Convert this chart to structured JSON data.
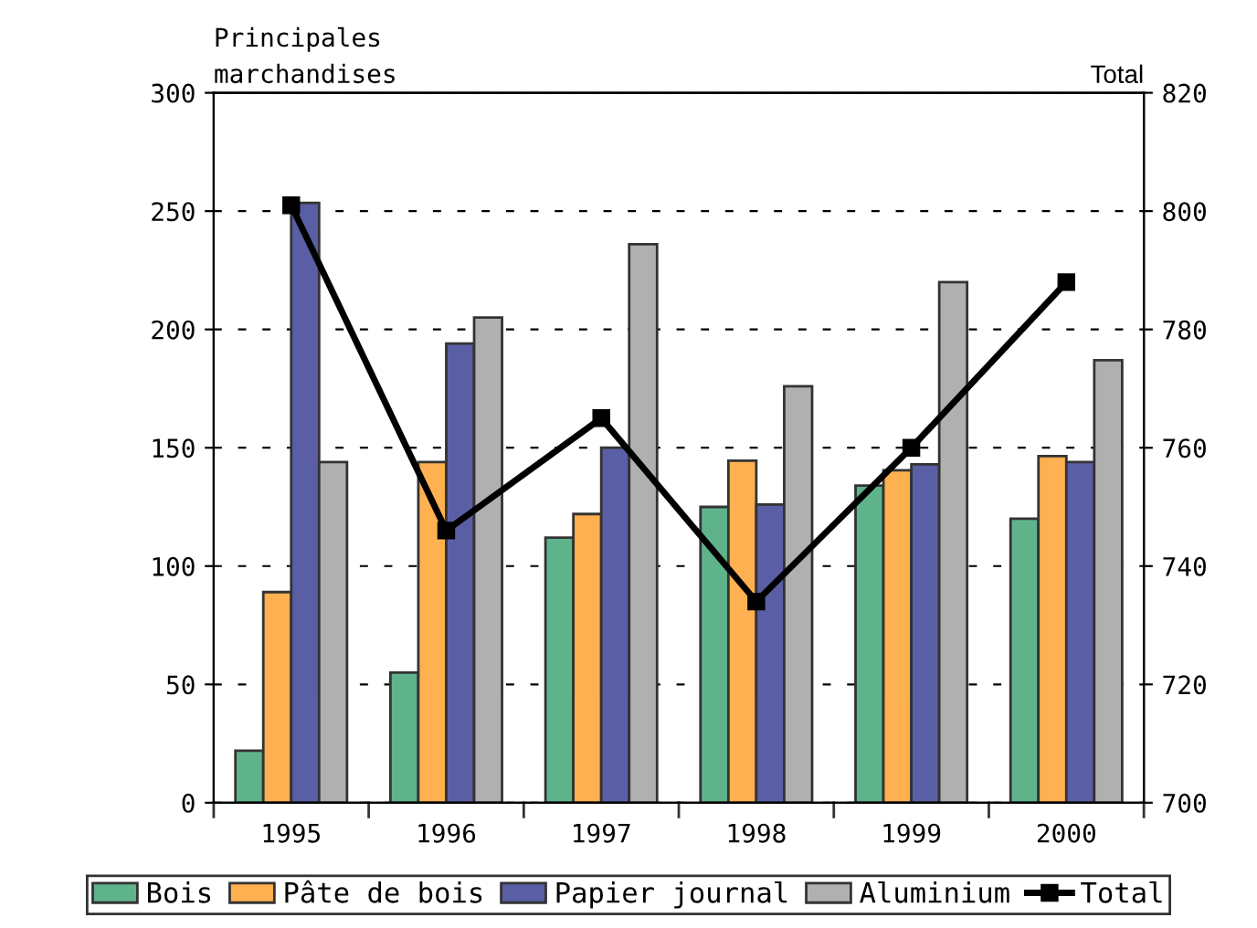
{
  "chart_data": {
    "type": "bar",
    "ylabel": "Principales\nmarchandises",
    "y2label": "Total",
    "categories": [
      "1995",
      "1996",
      "1997",
      "1998",
      "1999",
      "2000"
    ],
    "series": [
      {
        "name": "Bois",
        "color": "#5fb38a",
        "values": [
          22,
          55,
          112,
          125,
          134,
          120
        ]
      },
      {
        "name": "Pâte de bois",
        "color": "#ffb050",
        "values": [
          89,
          144,
          122,
          144.5,
          140.5,
          146.5
        ]
      },
      {
        "name": "Papier journal",
        "color": "#5a5fa5",
        "values": [
          253.5,
          194,
          150,
          126,
          143,
          144
        ]
      },
      {
        "name": "Aluminium",
        "color": "#b0b0b0",
        "values": [
          144,
          205,
          236,
          176,
          220,
          187
        ]
      },
      {
        "name": "Total",
        "type": "line",
        "axis": "y2",
        "color": "#000000",
        "marker": "square",
        "values": [
          801,
          746,
          765,
          734,
          760,
          788
        ]
      }
    ],
    "ylim": [
      0,
      300
    ],
    "yticks": [
      0,
      50,
      100,
      150,
      200,
      250,
      300
    ],
    "y2lim": [
      700,
      820
    ],
    "y2ticks": [
      700,
      720,
      740,
      760,
      780,
      800,
      820
    ],
    "grid": "y",
    "legend": "bottom"
  }
}
